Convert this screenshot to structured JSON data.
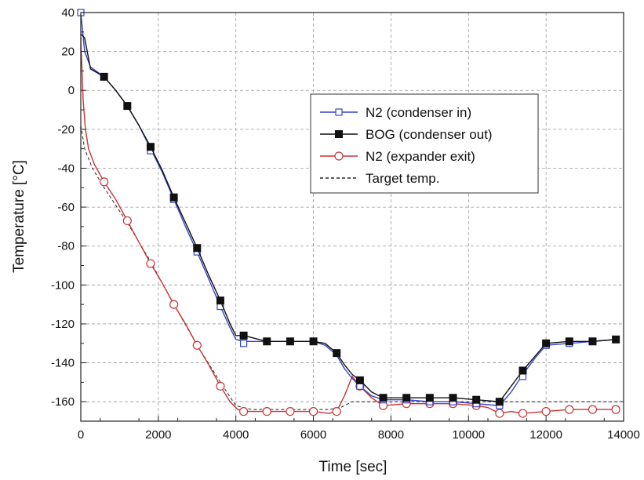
{
  "chart_data": {
    "type": "line",
    "title": "",
    "xlabel": "Time [sec]",
    "ylabel": "Temperature [°C]",
    "xlim": [
      0,
      14000
    ],
    "ylim": [
      -170,
      40
    ],
    "xticks": [
      0,
      2000,
      4000,
      6000,
      8000,
      10000,
      12000,
      14000
    ],
    "yticks": [
      40,
      20,
      0,
      -20,
      -40,
      -60,
      -80,
      -100,
      -120,
      -140,
      -160
    ],
    "grid": true,
    "legend_position": "top-right",
    "series": [
      {
        "name": "N2 (condenser in)",
        "color": "#3344cc",
        "marker": "open-square",
        "dash": "solid",
        "line": [
          [
            0,
            40
          ],
          [
            100,
            20
          ],
          [
            250,
            12
          ],
          [
            600,
            7
          ],
          [
            900,
            0
          ],
          [
            1200,
            -8
          ],
          [
            1500,
            -18
          ],
          [
            1800,
            -30
          ],
          [
            2100,
            -42
          ],
          [
            2400,
            -56
          ],
          [
            2700,
            -70
          ],
          [
            3000,
            -83
          ],
          [
            3300,
            -97
          ],
          [
            3600,
            -111
          ],
          [
            3850,
            -122
          ],
          [
            4000,
            -128
          ],
          [
            4200,
            -129
          ],
          [
            4800,
            -129
          ],
          [
            5400,
            -129
          ],
          [
            6000,
            -129
          ],
          [
            6300,
            -131
          ],
          [
            6600,
            -136
          ],
          [
            6800,
            -143
          ],
          [
            7000,
            -148
          ],
          [
            7200,
            -152
          ],
          [
            7500,
            -157
          ],
          [
            7800,
            -159
          ],
          [
            8400,
            -159
          ],
          [
            9000,
            -160
          ],
          [
            9600,
            -160
          ],
          [
            10200,
            -161
          ],
          [
            10800,
            -162
          ],
          [
            11100,
            -155
          ],
          [
            11400,
            -146
          ],
          [
            11700,
            -138
          ],
          [
            12000,
            -131
          ],
          [
            12600,
            -130
          ],
          [
            13200,
            -129
          ],
          [
            13800,
            -128
          ]
        ],
        "markers": [
          [
            0,
            40
          ],
          [
            600,
            7
          ],
          [
            1200,
            -8
          ],
          [
            1800,
            -31
          ],
          [
            2400,
            -56
          ],
          [
            3000,
            -83
          ],
          [
            3600,
            -111
          ],
          [
            4200,
            -130
          ],
          [
            4800,
            -129
          ],
          [
            5400,
            -129
          ],
          [
            6000,
            -129
          ],
          [
            6600,
            -135
          ],
          [
            7200,
            -152
          ],
          [
            7800,
            -159
          ],
          [
            8400,
            -159
          ],
          [
            9000,
            -160
          ],
          [
            9600,
            -160
          ],
          [
            10200,
            -161
          ],
          [
            10800,
            -162
          ],
          [
            11400,
            -147
          ],
          [
            12000,
            -131
          ],
          [
            12600,
            -130
          ],
          [
            13200,
            -129
          ],
          [
            13800,
            -128
          ]
        ]
      },
      {
        "name": "BOG (condenser out)",
        "color": "#111111",
        "marker": "filled-square",
        "dash": "solid",
        "line": [
          [
            0,
            29
          ],
          [
            100,
            27
          ],
          [
            250,
            11
          ],
          [
            600,
            7
          ],
          [
            900,
            0
          ],
          [
            1200,
            -8
          ],
          [
            1500,
            -18
          ],
          [
            1800,
            -29
          ],
          [
            2100,
            -41
          ],
          [
            2400,
            -55
          ],
          [
            2700,
            -68
          ],
          [
            3000,
            -81
          ],
          [
            3300,
            -95
          ],
          [
            3600,
            -108
          ],
          [
            3850,
            -120
          ],
          [
            4000,
            -126
          ],
          [
            4200,
            -126
          ],
          [
            4800,
            -129
          ],
          [
            5400,
            -129
          ],
          [
            6000,
            -129
          ],
          [
            6300,
            -130
          ],
          [
            6600,
            -135
          ],
          [
            6800,
            -141
          ],
          [
            7000,
            -146
          ],
          [
            7200,
            -149
          ],
          [
            7500,
            -155
          ],
          [
            7800,
            -158
          ],
          [
            8400,
            -158
          ],
          [
            9000,
            -158
          ],
          [
            9600,
            -158
          ],
          [
            10200,
            -159
          ],
          [
            10800,
            -160
          ],
          [
            11100,
            -152
          ],
          [
            11400,
            -144
          ],
          [
            11700,
            -137
          ],
          [
            12000,
            -130
          ],
          [
            12600,
            -129
          ],
          [
            13200,
            -129
          ],
          [
            13800,
            -128
          ]
        ],
        "markers": [
          [
            600,
            7
          ],
          [
            1200,
            -8
          ],
          [
            1800,
            -29
          ],
          [
            2400,
            -55
          ],
          [
            3000,
            -81
          ],
          [
            3600,
            -108
          ],
          [
            4200,
            -126
          ],
          [
            4800,
            -129
          ],
          [
            5400,
            -129
          ],
          [
            6000,
            -129
          ],
          [
            6600,
            -135
          ],
          [
            7200,
            -149
          ],
          [
            7800,
            -158
          ],
          [
            8400,
            -158
          ],
          [
            9000,
            -158
          ],
          [
            9600,
            -158
          ],
          [
            10200,
            -159
          ],
          [
            10800,
            -160
          ],
          [
            11400,
            -144
          ],
          [
            12000,
            -130
          ],
          [
            12600,
            -129
          ],
          [
            13200,
            -129
          ],
          [
            13800,
            -128
          ]
        ]
      },
      {
        "name": "N2 (expander exit)",
        "color": "#cc3333",
        "marker": "open-circle",
        "dash": "solid",
        "line": [
          [
            0,
            27
          ],
          [
            60,
            -5
          ],
          [
            120,
            -20
          ],
          [
            200,
            -30
          ],
          [
            350,
            -38
          ],
          [
            600,
            -47
          ],
          [
            900,
            -56
          ],
          [
            1200,
            -67
          ],
          [
            1500,
            -78
          ],
          [
            1800,
            -89
          ],
          [
            2100,
            -99
          ],
          [
            2400,
            -110
          ],
          [
            2700,
            -120
          ],
          [
            3000,
            -131
          ],
          [
            3300,
            -141
          ],
          [
            3600,
            -152
          ],
          [
            3850,
            -160
          ],
          [
            4050,
            -164
          ],
          [
            4200,
            -165
          ],
          [
            4800,
            -165
          ],
          [
            5400,
            -165
          ],
          [
            6000,
            -165
          ],
          [
            6400,
            -166
          ],
          [
            6600,
            -165
          ],
          [
            6800,
            -157
          ],
          [
            7000,
            -147
          ],
          [
            7200,
            -152
          ],
          [
            7500,
            -158
          ],
          [
            7800,
            -162
          ],
          [
            8400,
            -161
          ],
          [
            9000,
            -161
          ],
          [
            9600,
            -161
          ],
          [
            10200,
            -162
          ],
          [
            10500,
            -163
          ],
          [
            10800,
            -166
          ],
          [
            11100,
            -165
          ],
          [
            11400,
            -166
          ],
          [
            12000,
            -165
          ],
          [
            12600,
            -164
          ],
          [
            13200,
            -164
          ],
          [
            13800,
            -164
          ]
        ],
        "markers": [
          [
            600,
            -47
          ],
          [
            1200,
            -67
          ],
          [
            1800,
            -89
          ],
          [
            2400,
            -110
          ],
          [
            3000,
            -131
          ],
          [
            3600,
            -152
          ],
          [
            4200,
            -165
          ],
          [
            4800,
            -165
          ],
          [
            5400,
            -165
          ],
          [
            6000,
            -165
          ],
          [
            6600,
            -165
          ],
          [
            7200,
            -152
          ],
          [
            7800,
            -162
          ],
          [
            8400,
            -161
          ],
          [
            9000,
            -161
          ],
          [
            9600,
            -161
          ],
          [
            10200,
            -162
          ],
          [
            10800,
            -166
          ],
          [
            11400,
            -166
          ],
          [
            12000,
            -165
          ],
          [
            12600,
            -164
          ],
          [
            13200,
            -164
          ],
          [
            13800,
            -164
          ]
        ]
      },
      {
        "name": "Target temp.",
        "color": "#222222",
        "marker": "none",
        "dash": "dashed",
        "line": [
          [
            0,
            -18
          ],
          [
            100,
            -30
          ],
          [
            300,
            -40
          ],
          [
            600,
            -50
          ],
          [
            1200,
            -68
          ],
          [
            1800,
            -88
          ],
          [
            2400,
            -110
          ],
          [
            3000,
            -131
          ],
          [
            3600,
            -150
          ],
          [
            4000,
            -162
          ],
          [
            4400,
            -164
          ],
          [
            5400,
            -164
          ],
          [
            6400,
            -164
          ],
          [
            6700,
            -163
          ],
          [
            7000,
            -160
          ],
          [
            8000,
            -160
          ],
          [
            10000,
            -160
          ],
          [
            11000,
            -160
          ],
          [
            12000,
            -160
          ],
          [
            13000,
            -160
          ],
          [
            14000,
            -160
          ]
        ],
        "markers": []
      }
    ]
  }
}
